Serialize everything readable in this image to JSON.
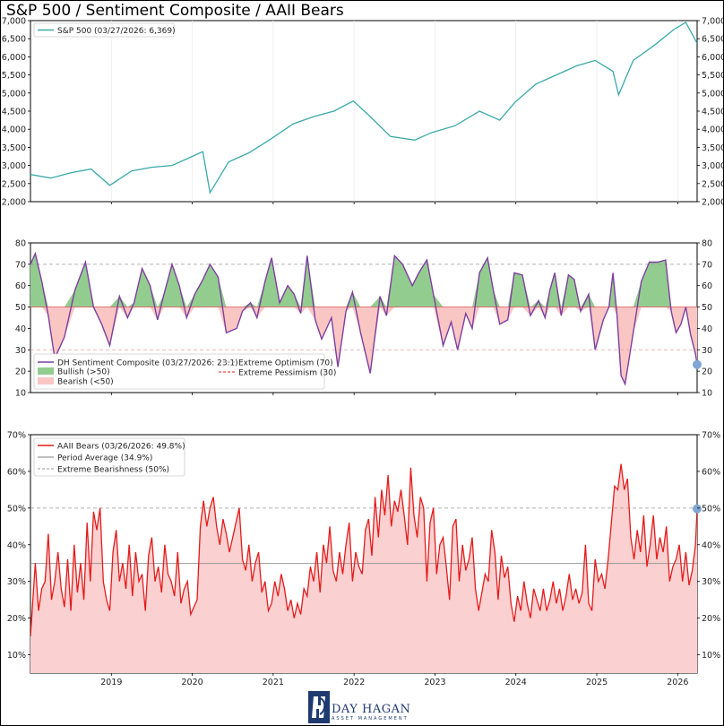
{
  "title": "S&P 500 / Sentiment Composite / AAII Bears",
  "logo": {
    "name": "DAY HAGAN",
    "sub": "ASSET MANAGEMENT"
  },
  "colors": {
    "spx": "#3aa9a9",
    "dh": "#7d3fa0",
    "bull": "#93cc8f",
    "bear": "#f9c6c4",
    "aaii": "#e51b1b",
    "aaii_fill": "#fbd0d0",
    "marker": "#7fa6d4"
  },
  "chart_data": [
    {
      "type": "line",
      "name": "spx",
      "legend": [
        "S&P 500 (03/27/2026: 6,369)"
      ],
      "ylim": [
        2000,
        7000
      ],
      "yticks": [
        "2,000",
        "2,500",
        "3,000",
        "3,500",
        "4,000",
        "4,500",
        "5,000",
        "5,500",
        "6,000",
        "6,500",
        "7,000"
      ],
      "x": [
        2018.0,
        2018.25,
        2018.5,
        2018.75,
        2018.98,
        2019.25,
        2019.5,
        2019.75,
        2020.0,
        2020.13,
        2020.22,
        2020.45,
        2020.7,
        2020.95,
        2021.25,
        2021.5,
        2021.75,
        2021.99,
        2022.2,
        2022.45,
        2022.75,
        2022.95,
        2023.25,
        2023.55,
        2023.8,
        2023.99,
        2024.25,
        2024.5,
        2024.75,
        2024.98,
        2025.2,
        2025.27,
        2025.45,
        2025.7,
        2025.95,
        2026.1,
        2026.24
      ],
      "y": [
        2750,
        2650,
        2800,
        2900,
        2450,
        2850,
        2950,
        3000,
        3250,
        3380,
        2250,
        3100,
        3350,
        3700,
        4150,
        4350,
        4500,
        4780,
        4350,
        3800,
        3700,
        3900,
        4100,
        4500,
        4250,
        4750,
        5250,
        5500,
        5750,
        5900,
        5600,
        4950,
        5900,
        6300,
        6750,
        6950,
        6369
      ]
    },
    {
      "type": "line",
      "name": "dh_composite",
      "legend": [
        "DH Sentiment Composite (03/27/2026: 23.1)",
        "Bullish (>50)",
        "Bearish (<50)",
        "Extreme Optimism (70)",
        "Extreme Pessimism (30)"
      ],
      "ylim": [
        10,
        80
      ],
      "yticks": [
        "10",
        "20",
        "30",
        "40",
        "50",
        "60",
        "70",
        "80"
      ],
      "x": [
        2018.0,
        2018.06,
        2018.14,
        2018.22,
        2018.3,
        2018.42,
        2018.55,
        2018.68,
        2018.78,
        2018.88,
        2018.98,
        2019.1,
        2019.2,
        2019.28,
        2019.38,
        2019.48,
        2019.57,
        2019.65,
        2019.75,
        2019.84,
        2019.93,
        2020.03,
        2020.12,
        2020.22,
        2020.32,
        2020.42,
        2020.55,
        2020.62,
        2020.72,
        2020.8,
        2020.9,
        2020.98,
        2021.08,
        2021.18,
        2021.26,
        2021.34,
        2021.42,
        2021.52,
        2021.6,
        2021.72,
        2021.8,
        2021.9,
        2021.98,
        2022.08,
        2022.2,
        2022.32,
        2022.4,
        2022.5,
        2022.6,
        2022.72,
        2022.8,
        2022.9,
        2022.98,
        2023.1,
        2023.2,
        2023.28,
        2023.38,
        2023.46,
        2023.55,
        2023.65,
        2023.72,
        2023.8,
        2023.9,
        2023.98,
        2024.08,
        2024.18,
        2024.28,
        2024.36,
        2024.42,
        2024.48,
        2024.56,
        2024.65,
        2024.72,
        2024.8,
        2024.9,
        2024.98,
        2025.08,
        2025.15,
        2025.2,
        2025.25,
        2025.3,
        2025.35,
        2025.45,
        2025.55,
        2025.65,
        2025.75,
        2025.85,
        2025.92,
        2025.98,
        2026.04,
        2026.1,
        2026.16,
        2026.22,
        2026.24
      ],
      "y": [
        70,
        75,
        62,
        46,
        26,
        36,
        58,
        71,
        50,
        42,
        32,
        55,
        45,
        52,
        68,
        60,
        44,
        56,
        70,
        60,
        45,
        56,
        62,
        70,
        64,
        38,
        40,
        48,
        52,
        45,
        62,
        73,
        52,
        60,
        56,
        47,
        74,
        44,
        35,
        45,
        22,
        48,
        57,
        38,
        19,
        55,
        46,
        74,
        70,
        60,
        66,
        72,
        56,
        32,
        43,
        30,
        47,
        40,
        66,
        73,
        58,
        42,
        44,
        66,
        65,
        46,
        53,
        45,
        58,
        66,
        46,
        65,
        63,
        48,
        56,
        30,
        44,
        50,
        66,
        46,
        18,
        14,
        38,
        62,
        71,
        71,
        72,
        48,
        38,
        42,
        50,
        37,
        28,
        23.1
      ]
    },
    {
      "type": "area",
      "name": "aaii_bears",
      "legend": [
        "AAII Bears (03/26/2026: 49.8%)",
        "Period Average (34.9%)",
        "Extreme Bearishness (50%)"
      ],
      "ylim": [
        5,
        70
      ],
      "yticks": [
        "10%",
        "20%",
        "30%",
        "40%",
        "50%",
        "60%",
        "70%"
      ],
      "xticks": [
        "2019",
        "2020",
        "2021",
        "2022",
        "2023",
        "2024",
        "2025",
        "2026"
      ],
      "average": 34.9,
      "extreme": 50,
      "x": [
        2018.0,
        2018.03,
        2018.06,
        2018.1,
        2018.14,
        2018.18,
        2018.22,
        2018.26,
        2018.3,
        2018.34,
        2018.38,
        2018.42,
        2018.46,
        2018.5,
        2018.54,
        2018.58,
        2018.62,
        2018.66,
        2018.7,
        2018.74,
        2018.78,
        2018.82,
        2018.86,
        2018.9,
        2018.94,
        2018.98,
        2019.02,
        2019.06,
        2019.1,
        2019.14,
        2019.18,
        2019.22,
        2019.26,
        2019.3,
        2019.34,
        2019.38,
        2019.42,
        2019.46,
        2019.5,
        2019.54,
        2019.58,
        2019.62,
        2019.66,
        2019.7,
        2019.74,
        2019.78,
        2019.82,
        2019.86,
        2019.9,
        2019.94,
        2019.98,
        2020.02,
        2020.06,
        2020.1,
        2020.14,
        2020.18,
        2020.22,
        2020.26,
        2020.3,
        2020.34,
        2020.38,
        2020.42,
        2020.46,
        2020.5,
        2020.54,
        2020.58,
        2020.62,
        2020.66,
        2020.7,
        2020.74,
        2020.78,
        2020.82,
        2020.86,
        2020.9,
        2020.94,
        2020.98,
        2021.02,
        2021.06,
        2021.1,
        2021.14,
        2021.18,
        2021.22,
        2021.26,
        2021.3,
        2021.34,
        2021.38,
        2021.42,
        2021.46,
        2021.5,
        2021.54,
        2021.58,
        2021.62,
        2021.66,
        2021.7,
        2021.74,
        2021.78,
        2021.82,
        2021.86,
        2021.9,
        2021.94,
        2021.98,
        2022.02,
        2022.06,
        2022.1,
        2022.14,
        2022.18,
        2022.22,
        2022.26,
        2022.3,
        2022.34,
        2022.38,
        2022.42,
        2022.46,
        2022.5,
        2022.54,
        2022.58,
        2022.62,
        2022.66,
        2022.7,
        2022.74,
        2022.78,
        2022.82,
        2022.86,
        2022.9,
        2022.94,
        2022.98,
        2023.02,
        2023.06,
        2023.1,
        2023.14,
        2023.18,
        2023.22,
        2023.26,
        2023.3,
        2023.34,
        2023.38,
        2023.42,
        2023.46,
        2023.5,
        2023.54,
        2023.58,
        2023.62,
        2023.66,
        2023.7,
        2023.74,
        2023.78,
        2023.82,
        2023.86,
        2023.9,
        2023.94,
        2023.98,
        2024.02,
        2024.06,
        2024.1,
        2024.14,
        2024.18,
        2024.22,
        2024.26,
        2024.3,
        2024.34,
        2024.38,
        2024.42,
        2024.46,
        2024.5,
        2024.54,
        2024.58,
        2024.62,
        2024.66,
        2024.7,
        2024.74,
        2024.78,
        2024.82,
        2024.86,
        2024.9,
        2024.94,
        2024.98,
        2025.02,
        2025.06,
        2025.1,
        2025.14,
        2025.18,
        2025.22,
        2025.26,
        2025.3,
        2025.34,
        2025.38,
        2025.42,
        2025.46,
        2025.5,
        2025.54,
        2025.58,
        2025.62,
        2025.66,
        2025.7,
        2025.74,
        2025.78,
        2025.82,
        2025.86,
        2025.9,
        2025.94,
        2025.98,
        2026.02,
        2026.06,
        2026.1,
        2026.14,
        2026.18,
        2026.22,
        2026.24
      ],
      "y": [
        15,
        25,
        35,
        22,
        28,
        30,
        43,
        25,
        30,
        38,
        28,
        23,
        36,
        22,
        40,
        27,
        35,
        25,
        46,
        30,
        49,
        44,
        50,
        30,
        25,
        22,
        38,
        44,
        30,
        35,
        28,
        40,
        26,
        38,
        30,
        32,
        22,
        37,
        42,
        30,
        34,
        27,
        40,
        32,
        30,
        26,
        38,
        24,
        28,
        30,
        21,
        23,
        25,
        45,
        52,
        45,
        50,
        53,
        45,
        40,
        47,
        43,
        38,
        42,
        46,
        50,
        36,
        33,
        40,
        30,
        35,
        38,
        27,
        30,
        22,
        24,
        30,
        26,
        32,
        28,
        22,
        25,
        20,
        24,
        21,
        28,
        26,
        34,
        30,
        38,
        27,
        40,
        35,
        45,
        33,
        30,
        38,
        32,
        40,
        46,
        30,
        38,
        34,
        32,
        44,
        47,
        37,
        53,
        42,
        55,
        48,
        59,
        45,
        52,
        49,
        55,
        48,
        40,
        61,
        48,
        42,
        53,
        50,
        30,
        46,
        50,
        32,
        40,
        42,
        34,
        25,
        45,
        47,
        30,
        40,
        33,
        36,
        42,
        28,
        22,
        27,
        32,
        30,
        44,
        38,
        25,
        37,
        31,
        34,
        24,
        19,
        26,
        22,
        30,
        24,
        20,
        28,
        25,
        22,
        28,
        22,
        25,
        30,
        24,
        28,
        22,
        26,
        32,
        25,
        28,
        24,
        27,
        40,
        24,
        22,
        36,
        30,
        32,
        28,
        36,
        46,
        56,
        55,
        62,
        55,
        58,
        42,
        36,
        44,
        38,
        48,
        34,
        40,
        48,
        36,
        42,
        38,
        45,
        30,
        34,
        36,
        40,
        30,
        38,
        29,
        33,
        40,
        49.8
      ]
    }
  ]
}
